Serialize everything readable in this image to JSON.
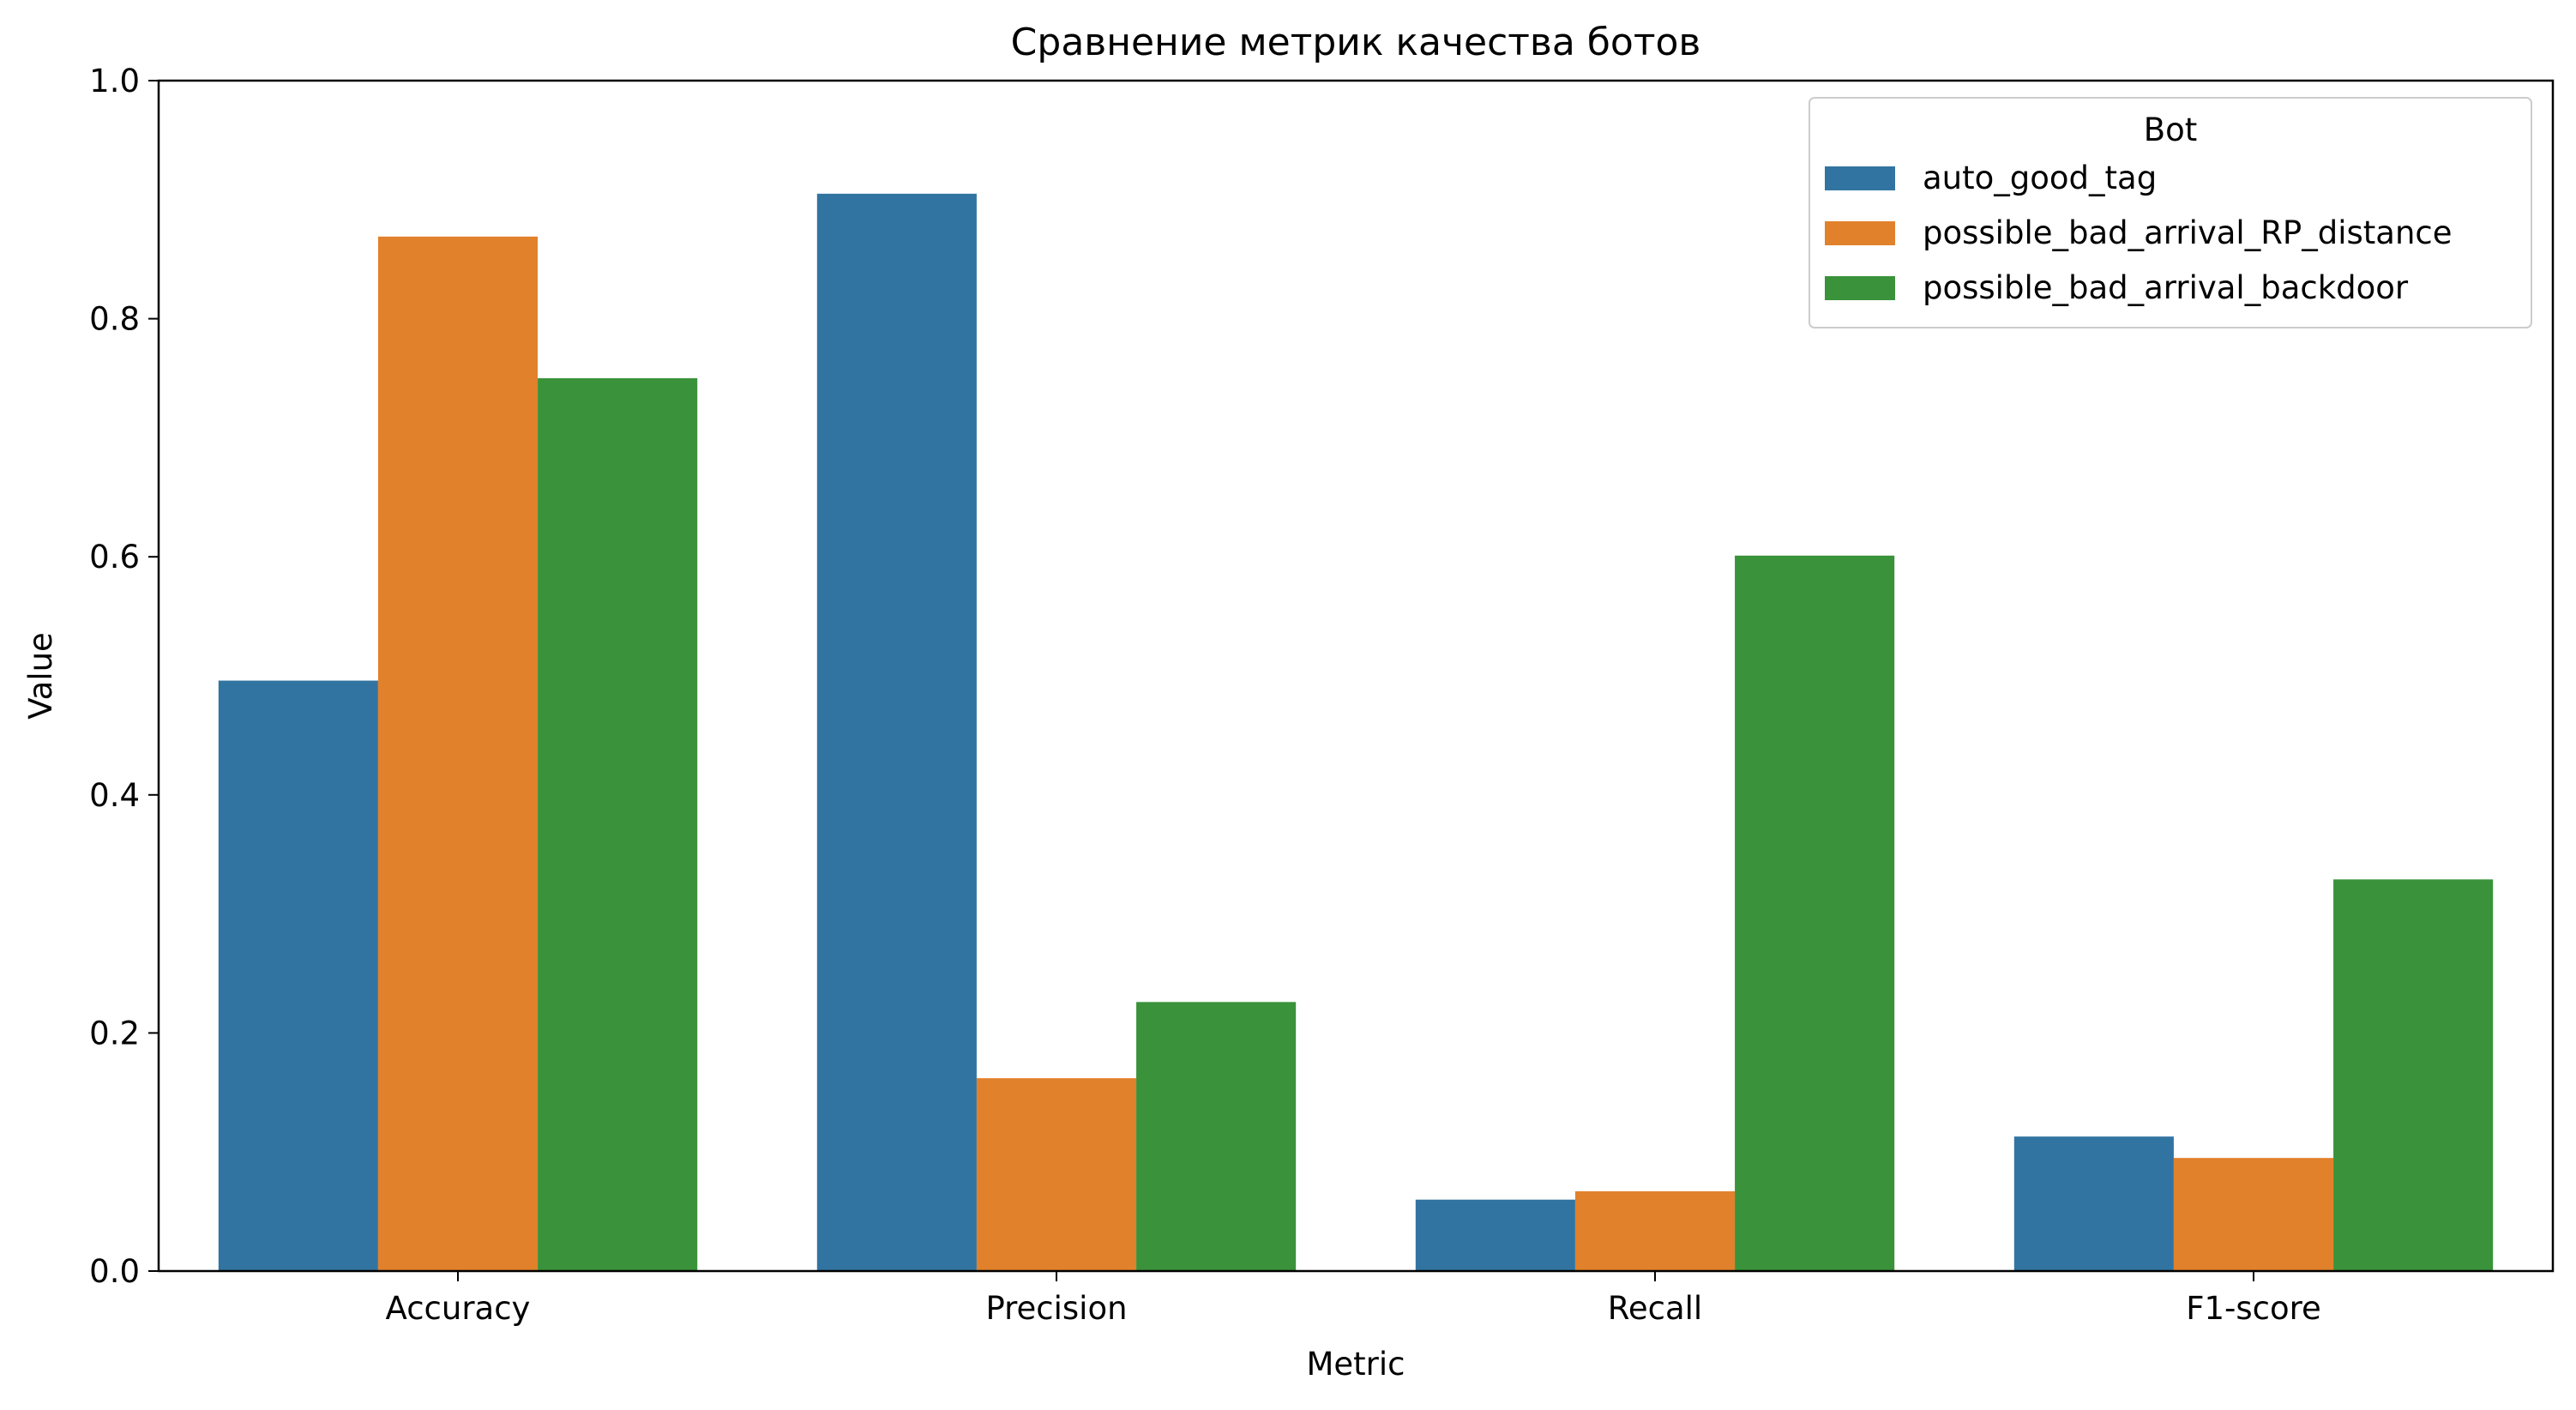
{
  "chart_data": {
    "type": "bar",
    "title": "Сравнение метрик качества ботов",
    "xlabel": "Metric",
    "ylabel": "Value",
    "categories": [
      "Accuracy",
      "Precision",
      "Recall",
      "F1-score"
    ],
    "ylim": [
      0,
      1.0
    ],
    "yticks": [
      "0.0",
      "0.2",
      "0.4",
      "0.6",
      "0.8",
      "1.0"
    ],
    "grid": false,
    "legend": {
      "title": "Bot",
      "placement": "top-right"
    },
    "series": [
      {
        "name": "auto_good_tag",
        "color": "#3274a1",
        "values": [
          0.496,
          0.905,
          0.06,
          0.113
        ]
      },
      {
        "name": "possible_bad_arrival_RP_distance",
        "color": "#e1812c",
        "values": [
          0.869,
          0.162,
          0.067,
          0.095
        ]
      },
      {
        "name": "possible_bad_arrival_backdoor",
        "color": "#3a923a",
        "values": [
          0.75,
          0.226,
          0.601,
          0.329
        ]
      }
    ]
  }
}
